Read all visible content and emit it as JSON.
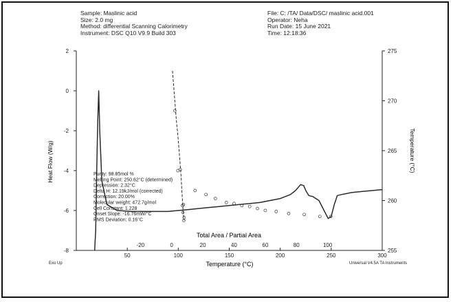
{
  "header": {
    "sample": "Sample: Maslinic acid",
    "size": "Size: 2.0 mg",
    "method": "Method: differential Scanning Calorimetry",
    "instrument": "Instrument: DSC Q10 V9.9 Build 303",
    "file": "File: C: /TA/ Data/DSC/ maslinic acid.001",
    "operator": "Operator: Neha",
    "run_date": "Run Date: 15 June 2021",
    "time": "Time: 12:18:36"
  },
  "footer": {
    "exo": "Exo Up",
    "software": "Universal V4.5A TA Instruments"
  },
  "purity_report": [
    "Purity: 98.85mol %",
    "Melting Point: 250.62°C (determined)",
    "Depression: 2.32°C",
    "Delta H: 12.19kJ/mol (corrected)",
    "Correction: 20.00%",
    "Molecular weight: 472.7g/mol",
    "Cell Constant: 1.228",
    "Onset Slope: -16.76mW/°C",
    "RMS Deviation: 0.16°C"
  ],
  "chart_data": {
    "type": "line",
    "xlabel": "Temperature (°C)",
    "ylabel": "Heat Flow (W/g)",
    "y2label": "Temperature (°C)",
    "x2label": "Total Area / Partial Area",
    "xlim": [
      0,
      300
    ],
    "ylim": [
      -8,
      2
    ],
    "y2lim": [
      255,
      275
    ],
    "x2lim": [
      -40,
      120
    ],
    "x_ticks": [
      "50",
      "100",
      "150",
      "200",
      "250",
      "300"
    ],
    "x_tick_values": [
      50,
      100,
      150,
      200,
      250,
      300
    ],
    "y_ticks": [
      "-8",
      "-6",
      "-4",
      "-2",
      "0",
      "2"
    ],
    "y_tick_values": [
      -8,
      -6,
      -4,
      -2,
      0,
      2
    ],
    "y2_ticks": [
      "255",
      "260",
      "265",
      "270",
      "275"
    ],
    "y2_tick_values": [
      255,
      260,
      265,
      270,
      275
    ],
    "x2_ticks": [
      "-20",
      "0",
      "20",
      "40",
      "60",
      "80",
      "100"
    ],
    "x2_tick_values": [
      -20,
      0,
      20,
      40,
      60,
      80,
      100
    ],
    "grid": false,
    "series": [
      {
        "values_x": [
          18,
          19,
          20,
          21,
          22,
          23,
          25,
          30,
          40,
          55,
          70,
          80,
          90,
          100,
          110,
          120,
          130,
          140,
          150,
          160,
          170,
          180,
          190,
          200,
          210,
          215,
          220,
          223,
          225,
          228,
          232,
          238,
          245,
          247,
          250,
          253,
          256,
          260,
          265,
          270,
          280,
          290,
          300
        ],
        "values_y": [
          -8.0,
          -7.0,
          -4.0,
          -1.5,
          0.0,
          -2.0,
          -4.5,
          -5.7,
          -6.0,
          -6.05,
          -6.05,
          -6.05,
          -6.05,
          -6.0,
          -5.95,
          -5.9,
          -5.85,
          -5.8,
          -5.75,
          -5.7,
          -5.65,
          -5.6,
          -5.5,
          -5.4,
          -5.2,
          -5.0,
          -4.7,
          -4.75,
          -5.0,
          -5.25,
          -5.3,
          -5.5,
          -6.2,
          -6.4,
          -6.3,
          -5.7,
          -5.25,
          -5.2,
          -5.15,
          -5.1,
          -5.05,
          -5.0,
          -4.95
        ]
      },
      {
        "values_x": [
          0.5,
          2,
          3,
          4,
          5,
          6,
          6.5,
          7,
          7.5,
          8
        ],
        "values_y": [
          273.0,
          270.0,
          268.0,
          266.5,
          264.5,
          262.5,
          261.0,
          259.8,
          258.6,
          258.0
        ]
      },
      {
        "values_x": [
          2,
          4,
          5.5,
          7,
          7.2,
          7.5,
          7.8,
          8,
          15,
          22,
          28,
          35,
          40,
          45,
          50,
          55,
          60,
          67,
          75,
          85,
          95,
          102
        ],
        "values_y": [
          269.0,
          263.0,
          263.1,
          259.5,
          258.8,
          259.6,
          258.0,
          258.3,
          261.0,
          260.6,
          260.2,
          259.8,
          259.7,
          259.5,
          259.4,
          259.2,
          259.0,
          258.9,
          258.7,
          258.6,
          258.4,
          258.4
        ]
      }
    ]
  }
}
